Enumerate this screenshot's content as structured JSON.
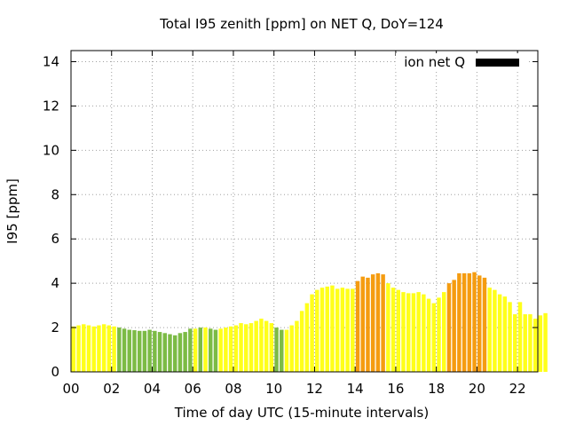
{
  "chart_data": {
    "type": "bar",
    "title": "Total I95 zenith [ppm] on NET Q, DoY=124",
    "xlabel": "Time of day UTC (15-minute intervals)",
    "ylabel": "I95 [ppm]",
    "xlim": [
      0,
      23
    ],
    "ylim": [
      0,
      14.5
    ],
    "x_ticks": [
      0,
      2,
      4,
      6,
      8,
      10,
      12,
      14,
      16,
      18,
      20,
      22
    ],
    "x_tick_labels": [
      "00",
      "02",
      "04",
      "06",
      "08",
      "10",
      "12",
      "14",
      "16",
      "18",
      "20",
      "22"
    ],
    "y_ticks": [
      0,
      2,
      4,
      6,
      8,
      10,
      12,
      14
    ],
    "y_tick_labels": [
      "0",
      "2",
      "4",
      "6",
      "8",
      "10",
      "12",
      "14"
    ],
    "grid": true,
    "legend": {
      "label": "ion net Q",
      "color": "#000000",
      "placement": "top-right"
    },
    "colors": {
      "green": "#7cbb45",
      "yellow": "#ffff1a",
      "orange": "#f59c10"
    },
    "bar_interval_hours": 0.25,
    "values": [
      2.05,
      2.1,
      2.15,
      2.1,
      2.05,
      2.1,
      2.15,
      2.1,
      2.05,
      2.0,
      1.95,
      1.9,
      1.88,
      1.85,
      1.85,
      1.9,
      1.85,
      1.8,
      1.75,
      1.7,
      1.65,
      1.75,
      1.8,
      1.95,
      1.95,
      2.0,
      2.0,
      1.95,
      1.9,
      1.95,
      2.0,
      2.05,
      2.1,
      2.2,
      2.15,
      2.2,
      2.3,
      2.4,
      2.3,
      2.2,
      2.0,
      1.9,
      1.9,
      2.1,
      2.3,
      2.75,
      3.1,
      3.5,
      3.7,
      3.8,
      3.85,
      3.9,
      3.75,
      3.8,
      3.75,
      3.75,
      4.1,
      4.3,
      4.25,
      4.4,
      4.45,
      4.4,
      4.0,
      3.8,
      3.7,
      3.6,
      3.55,
      3.55,
      3.6,
      3.5,
      3.3,
      3.1,
      3.35,
      3.6,
      4.0,
      4.15,
      4.45,
      4.45,
      4.45,
      4.5,
      4.35,
      4.25,
      3.8,
      3.7,
      3.5,
      3.4,
      3.15,
      2.6,
      3.15,
      2.6,
      2.6,
      2.4,
      2.55,
      2.65
    ],
    "bar_colors": [
      "yellow",
      "yellow",
      "yellow",
      "yellow",
      "yellow",
      "yellow",
      "yellow",
      "yellow",
      "yellow",
      "green",
      "green",
      "green",
      "green",
      "green",
      "green",
      "green",
      "green",
      "green",
      "green",
      "green",
      "green",
      "green",
      "green",
      "green",
      "yellow",
      "green",
      "yellow",
      "green",
      "green",
      "yellow",
      "yellow",
      "yellow",
      "yellow",
      "yellow",
      "yellow",
      "yellow",
      "yellow",
      "yellow",
      "yellow",
      "yellow",
      "green",
      "green",
      "yellow",
      "yellow",
      "yellow",
      "yellow",
      "yellow",
      "yellow",
      "yellow",
      "yellow",
      "yellow",
      "yellow",
      "yellow",
      "yellow",
      "yellow",
      "yellow",
      "orange",
      "orange",
      "orange",
      "orange",
      "orange",
      "orange",
      "yellow",
      "yellow",
      "yellow",
      "yellow",
      "yellow",
      "yellow",
      "yellow",
      "yellow",
      "yellow",
      "yellow",
      "yellow",
      "yellow",
      "orange",
      "orange",
      "orange",
      "orange",
      "orange",
      "orange",
      "orange",
      "orange",
      "yellow",
      "yellow",
      "yellow",
      "yellow",
      "yellow",
      "yellow",
      "yellow",
      "yellow",
      "yellow",
      "yellow",
      "yellow",
      "yellow"
    ]
  }
}
